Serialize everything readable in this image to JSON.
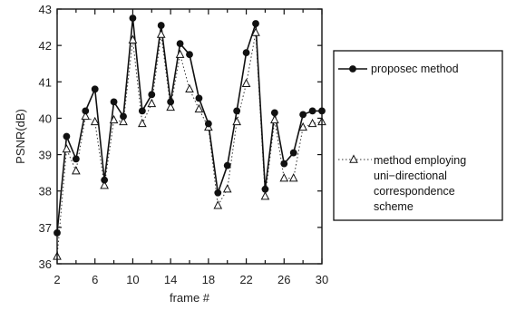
{
  "chart_data": {
    "type": "line",
    "xlabel": "frame #",
    "ylabel": "PSNR(dB)",
    "xlim": [
      2,
      30
    ],
    "ylim": [
      36,
      43
    ],
    "x_ticks": [
      2,
      6,
      10,
      14,
      18,
      22,
      26,
      30
    ],
    "y_ticks": [
      36,
      37,
      38,
      39,
      40,
      41,
      42,
      43
    ],
    "x": [
      2,
      3,
      4,
      5,
      6,
      7,
      8,
      9,
      10,
      11,
      12,
      13,
      14,
      15,
      16,
      17,
      18,
      19,
      20,
      21,
      22,
      23,
      24,
      25,
      26,
      27,
      28,
      29,
      30
    ],
    "series": [
      {
        "name": "proposec method",
        "marker": "filled-circle",
        "line": "solid",
        "values": [
          36.85,
          39.5,
          38.88,
          40.2,
          40.8,
          38.3,
          40.45,
          40.05,
          42.75,
          40.2,
          40.65,
          42.55,
          40.45,
          42.05,
          41.75,
          40.55,
          39.85,
          37.95,
          38.7,
          40.2,
          41.8,
          42.6,
          38.05,
          40.15,
          38.75,
          39.05,
          40.1,
          40.2,
          40.2
        ]
      },
      {
        "name": "method employing uni-directional correspondence scheme",
        "marker": "open-triangle",
        "line": "dotted",
        "values": [
          36.2,
          39.15,
          38.55,
          40.05,
          39.9,
          38.15,
          39.95,
          39.9,
          42.15,
          39.85,
          40.4,
          42.3,
          40.3,
          41.75,
          40.8,
          40.25,
          39.75,
          37.6,
          38.05,
          39.9,
          40.95,
          42.35,
          37.85,
          39.95,
          38.35,
          38.35,
          39.75,
          39.85,
          39.9
        ]
      }
    ],
    "legend": {
      "placement": "right",
      "entries": [
        [
          "proposec method"
        ],
        [
          "method employing",
          "uni−directional",
          "correspondence",
          "scheme"
        ]
      ]
    },
    "grid": false
  }
}
